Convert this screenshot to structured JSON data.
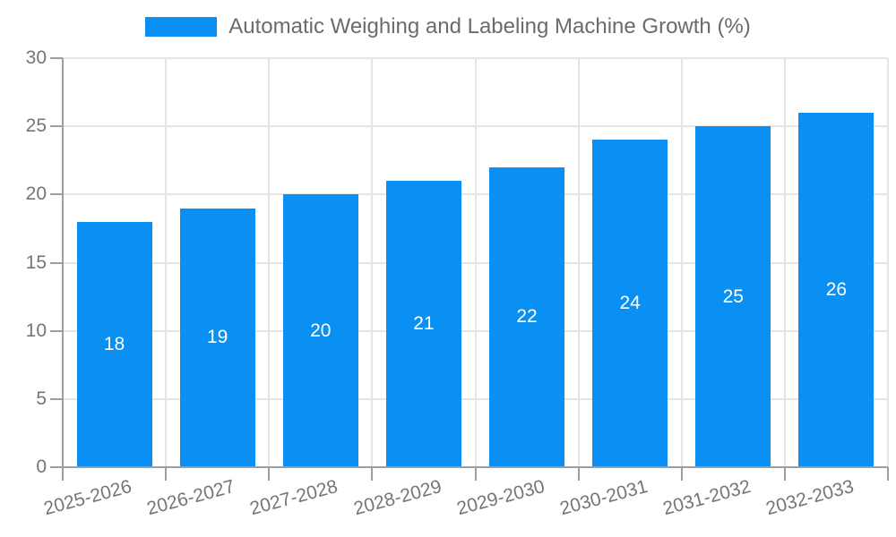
{
  "chart_data": {
    "type": "bar",
    "title": "Automatic Weighing and Labeling Machine Growth (%)",
    "categories": [
      "2025-2026",
      "2026-2027",
      "2027-2028",
      "2028-2029",
      "2029-2030",
      "2030-2031",
      "2031-2032",
      "2032-2033"
    ],
    "values": [
      18,
      19,
      20,
      21,
      22,
      24,
      25,
      26
    ],
    "series": [
      {
        "name": "Automatic Weighing and Labeling Machine Growth (%)",
        "values": [
          18,
          19,
          20,
          21,
          22,
          24,
          25,
          26
        ]
      }
    ],
    "xlabel": "",
    "ylabel": "",
    "ylim": [
      0,
      30
    ],
    "ytick_step": 5,
    "yticks": [
      0,
      5,
      10,
      15,
      20,
      25,
      30
    ],
    "grid": true,
    "legend_position": "top-center",
    "value_labels": "inside-middle",
    "xlabel_rotation_deg": -15
  },
  "colors": {
    "bar": "#0a90f2",
    "grid": "#e5e5e5",
    "axis": "#9e9e9e",
    "tick_label": "#757575",
    "title": "#6b6b6b",
    "value_label": "#ffffff",
    "background": "#ffffff"
  }
}
